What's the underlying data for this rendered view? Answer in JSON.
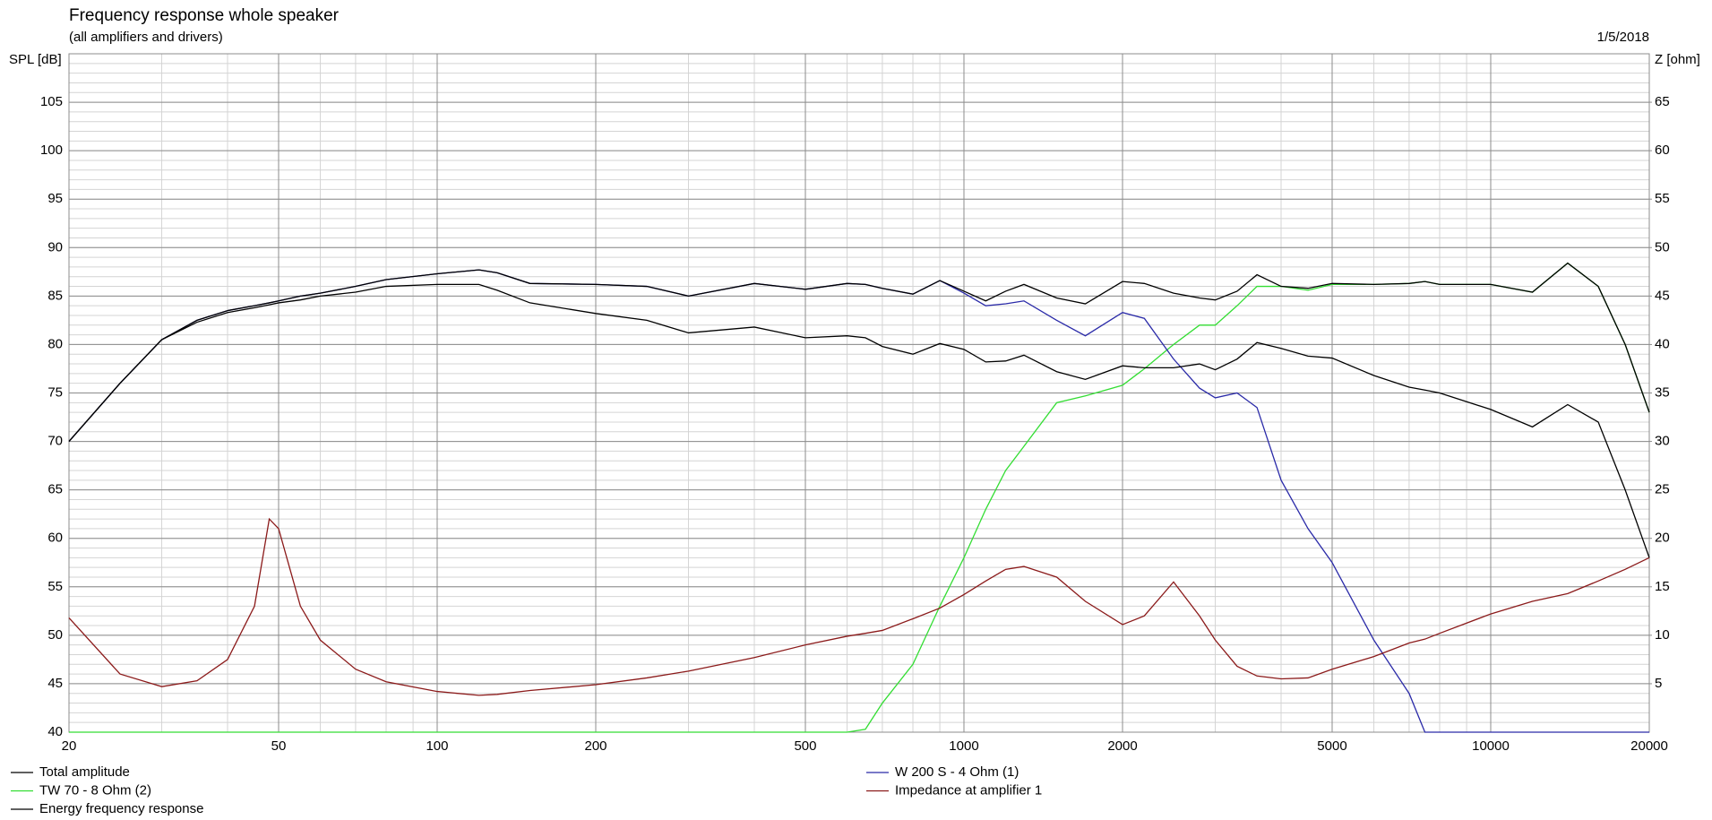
{
  "chart_data": {
    "type": "line",
    "title": "Frequency response whole speaker",
    "subtitle": "(all amplifiers and drivers)",
    "date": "1/5/2018",
    "y_label": "SPL [dB]",
    "y2_label": "Z [ohm]",
    "log_x": true,
    "xlim": [
      20,
      20000
    ],
    "xticks": [
      20,
      50,
      100,
      200,
      500,
      1000,
      2000,
      5000,
      10000,
      20000
    ],
    "x_minor_grid": [
      30,
      40,
      60,
      70,
      80,
      90,
      300,
      400,
      600,
      700,
      800,
      900,
      3000,
      4000,
      6000,
      7000,
      8000,
      9000
    ],
    "ylim": [
      40,
      110
    ],
    "yticks": [
      40,
      45,
      50,
      55,
      60,
      65,
      70,
      75,
      80,
      85,
      90,
      95,
      100,
      105
    ],
    "y_minor_step": 1,
    "y2lim": [
      0,
      70
    ],
    "y2ticks": [
      5,
      10,
      15,
      20,
      25,
      30,
      35,
      40,
      45,
      50,
      55,
      60,
      65
    ],
    "grid": true,
    "x": [
      20,
      25,
      30,
      35,
      40,
      45,
      48,
      50,
      55,
      60,
      70,
      80,
      100,
      120,
      130,
      150,
      200,
      250,
      300,
      400,
      500,
      600,
      650,
      700,
      800,
      900,
      1000,
      1100,
      1200,
      1300,
      1500,
      1700,
      2000,
      2200,
      2500,
      2800,
      3000,
      3300,
      3600,
      4000,
      4500,
      5000,
      6000,
      7000,
      7500,
      8000,
      10000,
      12000,
      14000,
      16000,
      18000,
      20000
    ],
    "series": [
      {
        "name": "Total amplitude",
        "color": "#000000",
        "values": [
          70,
          76,
          80.5,
          82.5,
          83.5,
          84,
          84.3,
          84.5,
          85,
          85.3,
          86,
          86.7,
          87.3,
          87.7,
          87.4,
          86.3,
          86.2,
          86,
          85,
          86.3,
          85.7,
          86.3,
          86.2,
          85.8,
          85.2,
          86.6,
          85.5,
          84.5,
          85.5,
          86.2,
          84.8,
          84.2,
          86.5,
          86.3,
          85.3,
          84.8,
          84.6,
          85.5,
          87.2,
          86,
          85.8,
          86.3,
          86.2,
          86.3,
          86.5,
          86.2,
          86.2,
          85.4,
          88.4,
          86,
          80,
          73
        ]
      },
      {
        "name": "TW 70 - 8 Ohm (2)",
        "color": "#33dd33",
        "values": [
          40,
          40,
          40,
          40,
          40,
          40,
          40,
          40,
          40,
          40,
          40,
          40,
          40,
          40,
          40,
          40,
          40,
          40,
          40,
          40,
          40,
          40,
          40.3,
          43,
          47,
          53,
          58,
          63,
          67,
          69.5,
          74,
          74.7,
          75.8,
          77.5,
          80,
          82,
          82,
          84,
          86,
          86,
          85.6,
          86.2,
          86.2,
          86.3,
          86.5,
          86.2,
          86.2,
          85.4,
          88.4,
          86,
          80,
          73
        ]
      },
      {
        "name": "Energy frequency response",
        "color": "#000000",
        "values": [
          70,
          76,
          80.5,
          82.3,
          83.3,
          83.8,
          84.1,
          84.3,
          84.6,
          85,
          85.4,
          86,
          86.2,
          86.2,
          85.6,
          84.3,
          83.2,
          82.5,
          81.2,
          81.8,
          80.7,
          80.9,
          80.7,
          79.8,
          79,
          80.1,
          79.5,
          78.2,
          78.3,
          78.9,
          77.2,
          76.4,
          77.8,
          77.6,
          77.6,
          78,
          77.4,
          78.5,
          80.2,
          79.6,
          78.8,
          78.6,
          76.8,
          75.6,
          75.3,
          75,
          73.3,
          71.5,
          73.8,
          72,
          65,
          58
        ]
      },
      {
        "name": "W 200 S - 4 Ohm (1)",
        "color": "#2a2aa8",
        "values": [
          70,
          76,
          80.5,
          82.5,
          83.5,
          84,
          84.3,
          84.5,
          85,
          85.3,
          86,
          86.7,
          87.3,
          87.7,
          87.4,
          86.3,
          86.2,
          86,
          85,
          86.3,
          85.7,
          86.3,
          86.2,
          85.8,
          85.2,
          86.6,
          85.3,
          84,
          84.2,
          84.5,
          82.5,
          80.9,
          83.3,
          82.7,
          78.5,
          75.5,
          74.5,
          75,
          73.5,
          66,
          61,
          57.5,
          49.5,
          44,
          40,
          40,
          40,
          40,
          40,
          40,
          40,
          40
        ]
      },
      {
        "name": "Impedance at amplifier 1",
        "color": "#8b1a1a",
        "axis": "y2",
        "values": [
          11.8,
          6,
          4.7,
          5.3,
          7.5,
          13,
          22,
          21,
          13,
          9.5,
          6.5,
          5.2,
          4.2,
          3.8,
          3.9,
          4.3,
          4.9,
          5.6,
          6.3,
          7.7,
          9,
          9.9,
          10.2,
          10.5,
          11.7,
          12.8,
          14.2,
          15.6,
          16.8,
          17.1,
          16,
          13.5,
          11.1,
          12,
          15.5,
          12,
          9.5,
          6.8,
          5.8,
          5.5,
          5.6,
          6.5,
          7.8,
          9.2,
          9.6,
          10.2,
          12.2,
          13.5,
          14.3,
          15.6,
          16.8,
          18
        ]
      }
    ]
  }
}
